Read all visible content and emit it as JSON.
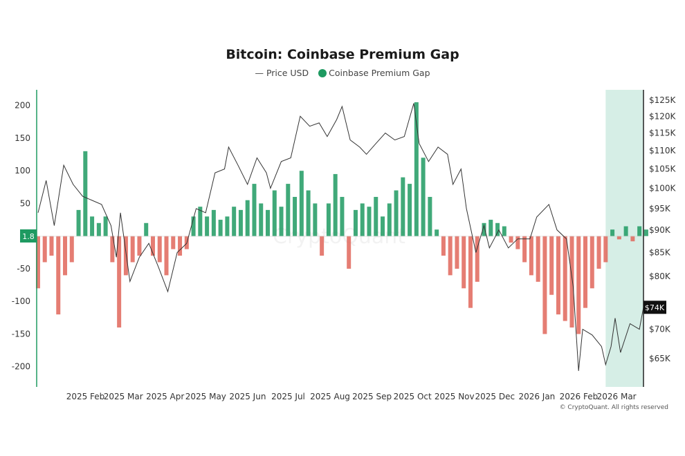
{
  "chart_data": {
    "type": "bar+line",
    "title": "Bitcoin: Coinbase Premium Gap",
    "legend": [
      {
        "label": "Price USD",
        "marker": "line",
        "color": "#333333"
      },
      {
        "label": "Coinbase Premium Gap",
        "marker": "dot",
        "color": "#1e9a61"
      }
    ],
    "legend_placement": "top-center",
    "grid": false,
    "x_range": [
      "2024-12-31",
      "2026-03-25"
    ],
    "x_ticks": [
      {
        "date": "2025-02-01",
        "label": "2025 Feb"
      },
      {
        "date": "2025-03-01",
        "label": "2025 Mar"
      },
      {
        "date": "2025-04-01",
        "label": "2025 Apr"
      },
      {
        "date": "2025-05-01",
        "label": "2025 May"
      },
      {
        "date": "2025-06-01",
        "label": "2025 Jun"
      },
      {
        "date": "2025-07-01",
        "label": "2025 Jul"
      },
      {
        "date": "2025-08-01",
        "label": "2025 Aug"
      },
      {
        "date": "2025-09-01",
        "label": "2025 Sep"
      },
      {
        "date": "2025-10-01",
        "label": "2025 Oct"
      },
      {
        "date": "2025-11-01",
        "label": "2025 Nov"
      },
      {
        "date": "2025-12-01",
        "label": "2025 Dec"
      },
      {
        "date": "2026-01-01",
        "label": "2026 Jan"
      },
      {
        "date": "2026-02-01",
        "label": "2026 Feb"
      },
      {
        "date": "2026-03-01",
        "label": "2026 Mar"
      }
    ],
    "y_left": {
      "ylim": [
        -231,
        224
      ],
      "ticks": [
        200,
        150,
        100,
        50,
        -50,
        -100,
        -150,
        -200
      ],
      "current_value_label": "1.8"
    },
    "y_right": {
      "scale": "log",
      "ylim": [
        60500,
        128300
      ],
      "ticks": [
        125000,
        120000,
        115000,
        110000,
        105000,
        100000,
        95000,
        90000,
        85000,
        80000,
        70000,
        65000
      ],
      "tick_labels": [
        "$125K",
        "$120K",
        "$115K",
        "$110K",
        "$105K",
        "$100K",
        "$95K",
        "$90K",
        "$85K",
        "$80K",
        "$70K",
        "$65K"
      ],
      "current_value_label": "$74K",
      "current_value": 74000
    },
    "highlight_range": [
      "2026-02-25",
      "2026-03-25"
    ],
    "positive_color": "#1e9a61",
    "negative_color": "#e0665a",
    "highlight_color": "#d6eee6",
    "premium_gap": {
      "x": [
        "2025-01-01",
        "2025-01-06",
        "2025-01-11",
        "2025-01-16",
        "2025-01-21",
        "2025-01-26",
        "2025-01-31",
        "2025-02-05",
        "2025-02-10",
        "2025-02-15",
        "2025-02-20",
        "2025-02-25",
        "2025-03-02",
        "2025-03-07",
        "2025-03-12",
        "2025-03-17",
        "2025-03-22",
        "2025-03-27",
        "2025-04-01",
        "2025-04-06",
        "2025-04-11",
        "2025-04-16",
        "2025-04-21",
        "2025-04-26",
        "2025-05-01",
        "2025-05-06",
        "2025-05-11",
        "2025-05-16",
        "2025-05-21",
        "2025-05-26",
        "2025-05-31",
        "2025-06-05",
        "2025-06-10",
        "2025-06-15",
        "2025-06-20",
        "2025-06-25",
        "2025-06-30",
        "2025-07-05",
        "2025-07-10",
        "2025-07-15",
        "2025-07-20",
        "2025-07-25",
        "2025-07-30",
        "2025-08-04",
        "2025-08-09",
        "2025-08-14",
        "2025-08-19",
        "2025-08-24",
        "2025-08-29",
        "2025-09-03",
        "2025-09-08",
        "2025-09-13",
        "2025-09-18",
        "2025-09-23",
        "2025-09-28",
        "2025-10-03",
        "2025-10-08",
        "2025-10-13",
        "2025-10-18",
        "2025-10-23",
        "2025-10-28",
        "2025-11-02",
        "2025-11-07",
        "2025-11-12",
        "2025-11-17",
        "2025-11-22",
        "2025-11-27",
        "2025-12-02",
        "2025-12-07",
        "2025-12-12",
        "2025-12-17",
        "2025-12-22",
        "2025-12-27",
        "2026-01-01",
        "2026-01-06",
        "2026-01-11",
        "2026-01-16",
        "2026-01-21",
        "2026-01-26",
        "2026-01-31",
        "2026-02-05",
        "2026-02-10",
        "2026-02-15",
        "2026-02-20",
        "2026-02-25",
        "2026-03-02",
        "2026-03-07",
        "2026-03-12",
        "2026-03-17",
        "2026-03-22",
        "2026-03-27"
      ],
      "values": [
        -80,
        -40,
        -30,
        -120,
        -60,
        -40,
        40,
        130,
        30,
        20,
        30,
        -40,
        -140,
        -60,
        -40,
        -30,
        20,
        -30,
        -40,
        -60,
        -20,
        -30,
        -20,
        30,
        45,
        30,
        40,
        25,
        30,
        45,
        40,
        55,
        80,
        50,
        40,
        70,
        45,
        80,
        60,
        100,
        70,
        50,
        -30,
        50,
        95,
        60,
        -50,
        40,
        50,
        45,
        60,
        30,
        50,
        70,
        90,
        80,
        205,
        120,
        60,
        10,
        -30,
        -60,
        -50,
        -80,
        -110,
        -70,
        20,
        25,
        20,
        15,
        -10,
        -20,
        -40,
        -60,
        -70,
        -150,
        -90,
        -120,
        -130,
        -140,
        -150,
        -110,
        -80,
        -50,
        -40,
        10,
        -5,
        15,
        -8,
        15,
        10
      ]
    },
    "price_usd": {
      "x": [
        "2025-01-01",
        "2025-01-07",
        "2025-01-13",
        "2025-01-20",
        "2025-01-27",
        "2025-02-03",
        "2025-02-10",
        "2025-02-17",
        "2025-02-24",
        "2025-02-28",
        "2025-03-03",
        "2025-03-10",
        "2025-03-17",
        "2025-03-24",
        "2025-03-31",
        "2025-04-07",
        "2025-04-14",
        "2025-04-21",
        "2025-04-28",
        "2025-05-05",
        "2025-05-12",
        "2025-05-19",
        "2025-05-22",
        "2025-05-29",
        "2025-06-05",
        "2025-06-12",
        "2025-06-19",
        "2025-06-22",
        "2025-06-30",
        "2025-07-07",
        "2025-07-14",
        "2025-07-21",
        "2025-07-28",
        "2025-08-03",
        "2025-08-10",
        "2025-08-14",
        "2025-08-20",
        "2025-08-27",
        "2025-09-01",
        "2025-09-08",
        "2025-09-15",
        "2025-09-22",
        "2025-09-29",
        "2025-10-06",
        "2025-10-10",
        "2025-10-17",
        "2025-10-24",
        "2025-10-31",
        "2025-11-04",
        "2025-11-10",
        "2025-11-14",
        "2025-11-21",
        "2025-11-27",
        "2025-12-01",
        "2025-12-08",
        "2025-12-15",
        "2025-12-22",
        "2025-12-31",
        "2026-01-05",
        "2026-01-14",
        "2026-01-20",
        "2026-01-27",
        "2026-02-01",
        "2026-02-05",
        "2026-02-08",
        "2026-02-15",
        "2026-02-22",
        "2026-02-25",
        "2026-03-01",
        "2026-03-04",
        "2026-03-08",
        "2026-03-15",
        "2026-03-22",
        "2026-03-25"
      ],
      "values": [
        94000,
        102000,
        91000,
        106000,
        101000,
        98000,
        97000,
        96000,
        91000,
        84000,
        94000,
        79000,
        84000,
        87000,
        82000,
        77000,
        85000,
        87000,
        95000,
        94000,
        104000,
        105000,
        111000,
        106000,
        101000,
        108000,
        104000,
        100000,
        107000,
        108000,
        120000,
        117000,
        118000,
        114000,
        119000,
        123000,
        113000,
        111000,
        109000,
        112000,
        115000,
        113000,
        114000,
        124000,
        112000,
        107000,
        111000,
        109000,
        101000,
        105000,
        95000,
        85000,
        91000,
        86000,
        90000,
        86000,
        88000,
        88000,
        93000,
        96000,
        90000,
        88000,
        78000,
        63000,
        70000,
        69000,
        67000,
        64000,
        67000,
        72000,
        66000,
        71000,
        70000,
        74000
      ]
    },
    "watermark": "CryptoQuant"
  },
  "copyright": "© CryptoQuant. All rights reserved"
}
